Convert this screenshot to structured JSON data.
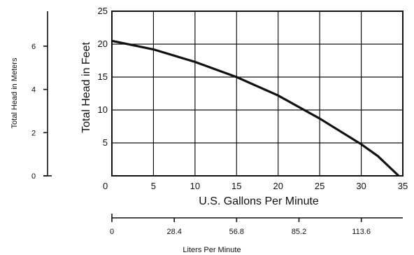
{
  "chart_data": {
    "type": "line",
    "series": [
      {
        "x": [
          0,
          5,
          10,
          15,
          20,
          25,
          30,
          32,
          34.5
        ],
        "y": [
          20.5,
          19.2,
          17.3,
          15.0,
          12.2,
          8.7,
          4.8,
          3.0,
          0.0
        ]
      }
    ],
    "xlabel": "U.S. Gallons Per Minute",
    "ylabel": "Total Head in Feet",
    "xlim": [
      0,
      35
    ],
    "ylim": [
      0,
      25
    ],
    "xticks": [
      "0",
      "5",
      "10",
      "15",
      "20",
      "25",
      "30",
      "35"
    ],
    "yticks": [
      "5",
      "10",
      "15",
      "20",
      "25"
    ],
    "grid": true,
    "secondary_y": {
      "label": "Total Head in Meters",
      "range": [
        0,
        7.62
      ],
      "ticks": [
        "0",
        "2",
        "4",
        "6"
      ],
      "tick_values": [
        0,
        2,
        4,
        6
      ]
    },
    "secondary_x": {
      "label": "Liters Per Minute",
      "range": [
        0,
        132.5
      ],
      "ticks": [
        "0",
        "28.4",
        "56.8",
        "85.2",
        "113.6"
      ],
      "tick_values": [
        0,
        28.4,
        56.8,
        85.2,
        113.6
      ]
    }
  }
}
